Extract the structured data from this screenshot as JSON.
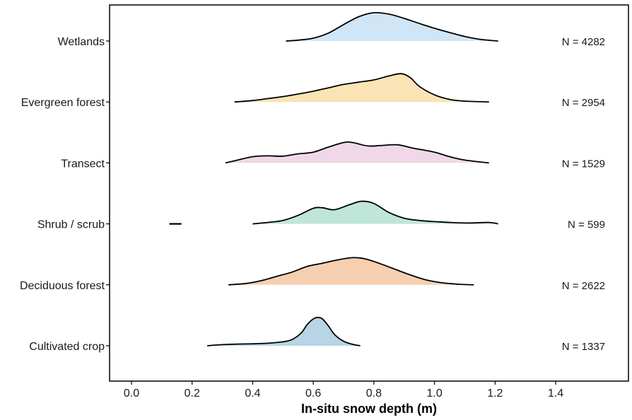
{
  "chart_data": {
    "type": "ridgeline",
    "title": "",
    "xlabel": "In-situ snow depth (m)",
    "ylabel": "",
    "xlim": [
      -0.07,
      1.65
    ],
    "x_ticks": [
      0.0,
      0.2,
      0.4,
      0.6,
      0.8,
      1.0,
      1.2,
      1.4
    ],
    "x_tick_labels": [
      "0.0",
      "0.2",
      "0.4",
      "0.6",
      "0.8",
      "1.0",
      "1.2",
      "1.4"
    ],
    "grid": false,
    "series": [
      {
        "name": "Wetlands",
        "n_label": "N = 4282",
        "color": "#d0e6f7",
        "points": [
          [
            0.51,
            0.0
          ],
          [
            0.55,
            0.03
          ],
          [
            0.6,
            0.1
          ],
          [
            0.65,
            0.28
          ],
          [
            0.7,
            0.58
          ],
          [
            0.75,
            0.86
          ],
          [
            0.8,
            1.0
          ],
          [
            0.85,
            0.95
          ],
          [
            0.9,
            0.8
          ],
          [
            0.95,
            0.62
          ],
          [
            1.0,
            0.45
          ],
          [
            1.05,
            0.3
          ],
          [
            1.1,
            0.16
          ],
          [
            1.15,
            0.06
          ],
          [
            1.21,
            0.0
          ]
        ]
      },
      {
        "name": "Evergreen forest",
        "n_label": "N = 2954",
        "color": "#fae3b4",
        "points": [
          [
            0.34,
            0.0
          ],
          [
            0.4,
            0.05
          ],
          [
            0.45,
            0.12
          ],
          [
            0.5,
            0.19
          ],
          [
            0.55,
            0.28
          ],
          [
            0.6,
            0.38
          ],
          [
            0.65,
            0.5
          ],
          [
            0.7,
            0.62
          ],
          [
            0.75,
            0.7
          ],
          [
            0.8,
            0.78
          ],
          [
            0.85,
            0.92
          ],
          [
            0.89,
            1.0
          ],
          [
            0.92,
            0.86
          ],
          [
            0.95,
            0.55
          ],
          [
            1.0,
            0.25
          ],
          [
            1.05,
            0.09
          ],
          [
            1.1,
            0.03
          ],
          [
            1.18,
            0.0
          ]
        ]
      },
      {
        "name": "Transect",
        "n_label": "N = 1529",
        "color": "#f0d8e8",
        "points": [
          [
            0.31,
            0.0
          ],
          [
            0.35,
            0.1
          ],
          [
            0.4,
            0.22
          ],
          [
            0.45,
            0.25
          ],
          [
            0.5,
            0.24
          ],
          [
            0.55,
            0.32
          ],
          [
            0.6,
            0.38
          ],
          [
            0.65,
            0.56
          ],
          [
            0.7,
            0.72
          ],
          [
            0.73,
            0.72
          ],
          [
            0.78,
            0.6
          ],
          [
            0.83,
            0.62
          ],
          [
            0.88,
            0.64
          ],
          [
            0.93,
            0.52
          ],
          [
            1.0,
            0.38
          ],
          [
            1.05,
            0.22
          ],
          [
            1.1,
            0.1
          ],
          [
            1.18,
            0.0
          ]
        ]
      },
      {
        "name": "Shrub / scrub",
        "n_label": "N = 599",
        "color": "#bfe6d8",
        "points": [
          [
            0.4,
            0.0
          ],
          [
            0.45,
            0.05
          ],
          [
            0.5,
            0.12
          ],
          [
            0.55,
            0.3
          ],
          [
            0.6,
            0.55
          ],
          [
            0.63,
            0.57
          ],
          [
            0.67,
            0.5
          ],
          [
            0.72,
            0.68
          ],
          [
            0.76,
            0.8
          ],
          [
            0.8,
            0.72
          ],
          [
            0.85,
            0.4
          ],
          [
            0.9,
            0.2
          ],
          [
            0.95,
            0.12
          ],
          [
            1.0,
            0.08
          ],
          [
            1.1,
            0.03
          ],
          [
            1.18,
            0.05
          ],
          [
            1.21,
            0.0
          ]
        ],
        "outlier_segment": [
          0.125,
          0.165
        ]
      },
      {
        "name": "Deciduous forest",
        "n_label": "N = 2622",
        "color": "#f5cfb0",
        "points": [
          [
            0.32,
            0.0
          ],
          [
            0.38,
            0.05
          ],
          [
            0.43,
            0.15
          ],
          [
            0.48,
            0.3
          ],
          [
            0.53,
            0.45
          ],
          [
            0.58,
            0.65
          ],
          [
            0.63,
            0.76
          ],
          [
            0.68,
            0.88
          ],
          [
            0.73,
            0.96
          ],
          [
            0.77,
            0.92
          ],
          [
            0.82,
            0.75
          ],
          [
            0.87,
            0.55
          ],
          [
            0.92,
            0.35
          ],
          [
            0.97,
            0.18
          ],
          [
            1.02,
            0.08
          ],
          [
            1.08,
            0.02
          ],
          [
            1.13,
            0.0
          ]
        ]
      },
      {
        "name": "Cultivated crop",
        "n_label": "N = 1337",
        "color": "#b7d5e6",
        "points": [
          [
            0.25,
            0.0
          ],
          [
            0.3,
            0.04
          ],
          [
            0.35,
            0.06
          ],
          [
            0.4,
            0.07
          ],
          [
            0.45,
            0.09
          ],
          [
            0.5,
            0.14
          ],
          [
            0.53,
            0.22
          ],
          [
            0.56,
            0.45
          ],
          [
            0.58,
            0.75
          ],
          [
            0.6,
            0.95
          ],
          [
            0.615,
            1.0
          ],
          [
            0.63,
            0.95
          ],
          [
            0.65,
            0.7
          ],
          [
            0.67,
            0.4
          ],
          [
            0.7,
            0.16
          ],
          [
            0.73,
            0.05
          ],
          [
            0.755,
            0.0
          ]
        ]
      }
    ]
  }
}
